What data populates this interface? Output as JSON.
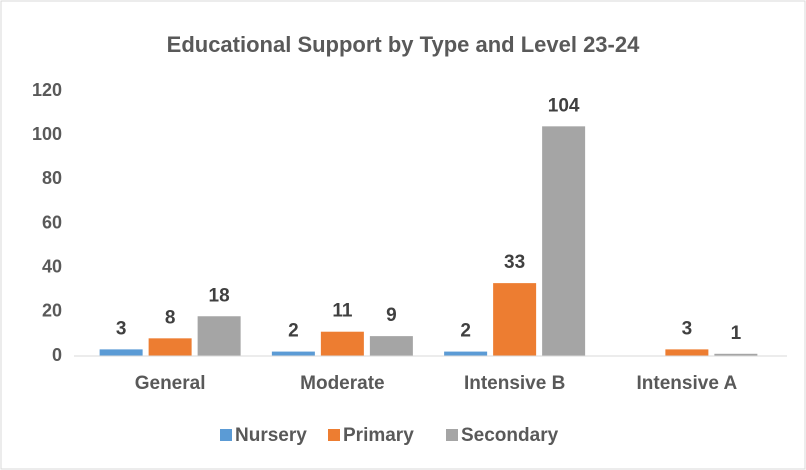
{
  "chart_data": {
    "type": "bar",
    "title": "Educational Support by Type and Level  23-24",
    "categories": [
      "General",
      "Moderate",
      "Intensive B",
      "Intensive A"
    ],
    "series": [
      {
        "name": "Nursery",
        "color": "#5b9bd5",
        "values": [
          3,
          2,
          2,
          null
        ]
      },
      {
        "name": "Primary",
        "color": "#ed7d31",
        "values": [
          8,
          11,
          33,
          3
        ]
      },
      {
        "name": "Secondary",
        "color": "#a5a5a5",
        "values": [
          18,
          9,
          104,
          1
        ]
      }
    ],
    "ylim": [
      0,
      120
    ],
    "yticks": [
      0,
      20,
      40,
      60,
      80,
      100,
      120
    ],
    "grid": false,
    "legend": "bottom"
  }
}
